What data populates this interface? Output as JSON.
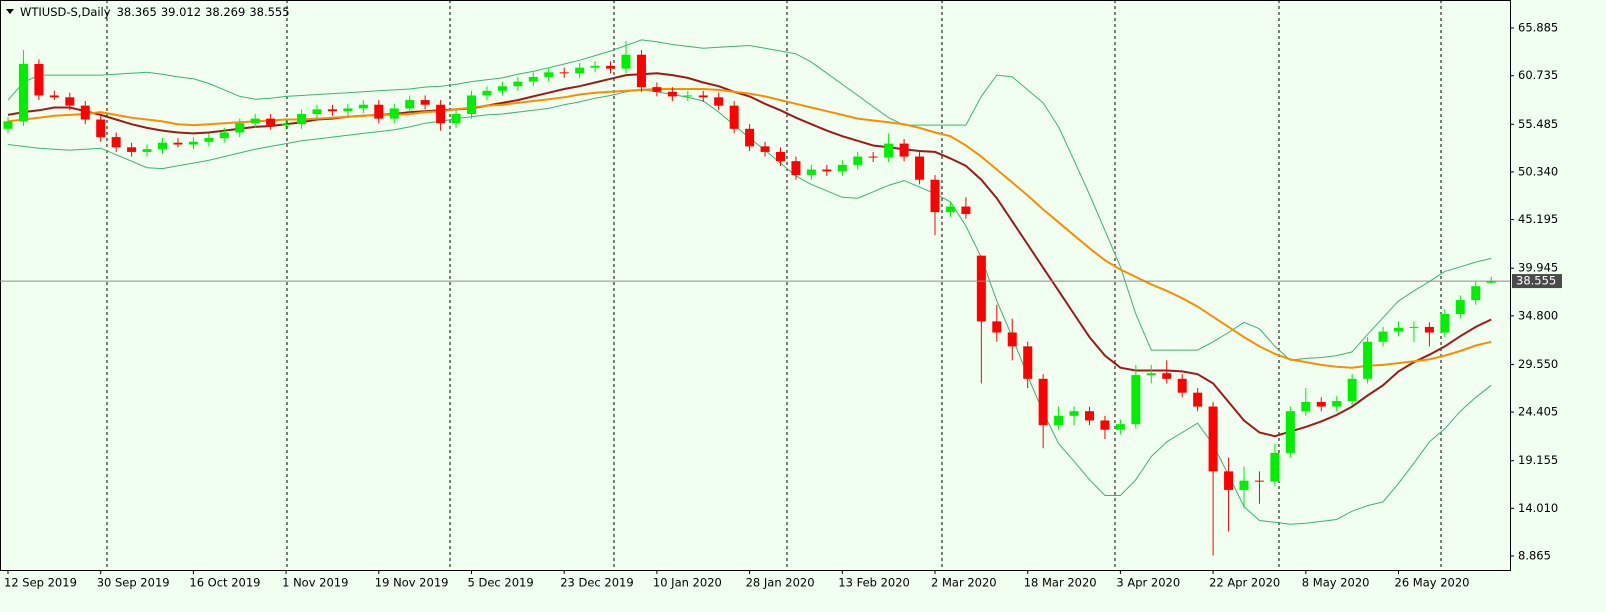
{
  "chart_data": {
    "type": "candlestick",
    "title": "WTIUSD-S,Daily",
    "header_values": [
      38.365,
      39.012,
      38.269,
      38.555
    ],
    "categories": [
      "12 Sep 2019",
      null,
      null,
      null,
      null,
      null,
      "30 Sep 2019",
      null,
      null,
      null,
      null,
      null,
      "16 Oct 2019",
      null,
      null,
      null,
      null,
      null,
      "1 Nov 2019",
      null,
      null,
      null,
      null,
      null,
      "19 Nov 2019",
      null,
      null,
      null,
      null,
      null,
      "5 Dec 2019",
      null,
      null,
      null,
      null,
      null,
      "23 Dec 2019",
      null,
      null,
      null,
      null,
      null,
      "10 Jan 2020",
      null,
      null,
      null,
      null,
      null,
      "28 Jan 2020",
      null,
      null,
      null,
      null,
      null,
      "13 Feb 2020",
      null,
      null,
      null,
      null,
      null,
      "2 Mar 2020",
      null,
      null,
      null,
      null,
      null,
      "18 Mar 2020",
      null,
      null,
      null,
      null,
      null,
      "3 Apr 2020",
      null,
      null,
      null,
      null,
      null,
      "22 Apr 2020",
      null,
      null,
      null,
      null,
      null,
      "8 May 2020",
      null,
      null,
      null,
      null,
      null,
      "26 May 2020",
      null,
      null,
      null,
      null,
      null,
      null
    ],
    "open": [
      55.0,
      55.8,
      62.0,
      58.6,
      58.4,
      57.5,
      56.0,
      54.1,
      53.0,
      52.5,
      52.8,
      53.5,
      53.3,
      53.6,
      54.0,
      54.6,
      55.6,
      56.1,
      55.4,
      55.5,
      56.6,
      57.1,
      56.9,
      57.2,
      57.6,
      56.1,
      57.2,
      58.1,
      57.6,
      55.6,
      56.6,
      58.6,
      59.1,
      59.6,
      60.1,
      60.6,
      61.1,
      61.0,
      61.6,
      61.8,
      61.5,
      63.0,
      59.5,
      59.0,
      58.5,
      58.6,
      58.4,
      57.5,
      55.0,
      53.1,
      52.5,
      51.5,
      50.0,
      50.6,
      50.4,
      51.1,
      52.0,
      51.9,
      53.4,
      52.0,
      49.5,
      46.0,
      46.6,
      41.3,
      34.2,
      33.0,
      31.5,
      28.0,
      23.0,
      24.0,
      24.5,
      23.5,
      22.5,
      23.1,
      28.4,
      28.6,
      28.0,
      26.5,
      25.0,
      18.0,
      16.0,
      17.0,
      16.9,
      20.0,
      24.5,
      25.5,
      25.0,
      25.6,
      28.0,
      32.0,
      33.1,
      33.5,
      33.6,
      33.0,
      35.0,
      36.5,
      38.365
    ],
    "high": [
      56.3,
      63.5,
      62.5,
      59.1,
      58.9,
      58.0,
      56.5,
      54.6,
      53.5,
      53.3,
      54.0,
      54.0,
      54.1,
      54.5,
      55.1,
      56.1,
      56.6,
      56.6,
      56.0,
      57.1,
      57.6,
      57.6,
      57.7,
      58.1,
      58.1,
      57.7,
      58.6,
      58.6,
      58.1,
      57.1,
      59.1,
      59.6,
      60.1,
      60.6,
      61.1,
      61.6,
      61.6,
      62.1,
      62.3,
      62.3,
      64.5,
      63.5,
      60.0,
      59.5,
      59.1,
      59.1,
      58.9,
      58.0,
      55.5,
      53.6,
      53.0,
      52.0,
      51.1,
      51.1,
      51.6,
      52.5,
      52.5,
      54.5,
      53.9,
      52.5,
      50.0,
      47.1,
      47.6,
      41.3,
      36.0,
      34.5,
      32.0,
      28.5,
      25.0,
      25.0,
      25.0,
      24.0,
      23.6,
      29.5,
      29.5,
      30.0,
      28.5,
      27.0,
      25.5,
      19.5,
      18.5,
      18.0,
      21.0,
      25.0,
      27.0,
      26.0,
      26.1,
      28.5,
      32.5,
      33.6,
      34.2,
      34.2,
      34.1,
      35.5,
      37.0,
      38.5,
      39.012
    ],
    "low": [
      54.5,
      55.3,
      58.1,
      58.1,
      57.0,
      55.5,
      53.6,
      52.5,
      52.0,
      52.0,
      52.3,
      53.0,
      52.8,
      53.1,
      53.5,
      54.1,
      55.1,
      54.9,
      54.9,
      55.0,
      56.1,
      56.4,
      56.4,
      56.7,
      55.6,
      55.6,
      56.7,
      57.1,
      54.8,
      55.1,
      56.1,
      58.1,
      58.6,
      59.1,
      59.6,
      60.1,
      60.5,
      60.5,
      61.1,
      61.0,
      61.0,
      59.0,
      58.5,
      58.0,
      58.0,
      57.9,
      57.0,
      54.5,
      52.6,
      52.0,
      51.0,
      49.5,
      49.5,
      49.9,
      49.9,
      50.6,
      51.4,
      51.4,
      51.5,
      49.0,
      43.5,
      45.5,
      45.3,
      27.5,
      32.0,
      30.0,
      27.0,
      20.5,
      22.5,
      23.0,
      23.0,
      21.5,
      22.0,
      22.6,
      27.5,
      27.5,
      26.0,
      24.5,
      8.9,
      11.5,
      14.0,
      14.5,
      16.4,
      19.5,
      24.0,
      24.5,
      24.5,
      25.1,
      27.5,
      31.5,
      32.6,
      32.0,
      31.5,
      32.5,
      34.5,
      36.0,
      38.269
    ],
    "close": [
      55.8,
      62.0,
      58.6,
      58.4,
      57.5,
      56.0,
      54.1,
      53.0,
      52.5,
      52.8,
      53.5,
      53.3,
      53.6,
      54.0,
      54.6,
      55.6,
      56.1,
      55.4,
      55.5,
      56.6,
      57.1,
      56.9,
      57.2,
      57.6,
      56.1,
      57.2,
      58.1,
      57.6,
      55.6,
      56.6,
      58.6,
      59.1,
      59.6,
      60.1,
      60.6,
      61.1,
      61.0,
      61.6,
      61.8,
      61.5,
      63.0,
      59.5,
      59.0,
      58.5,
      58.6,
      58.4,
      57.5,
      55.0,
      53.1,
      52.5,
      51.5,
      50.0,
      50.6,
      50.4,
      51.1,
      52.0,
      51.9,
      53.4,
      52.0,
      49.5,
      46.0,
      46.6,
      45.8,
      34.2,
      33.0,
      31.5,
      28.0,
      23.0,
      24.0,
      24.5,
      23.5,
      22.5,
      23.1,
      28.4,
      28.6,
      28.0,
      26.5,
      25.0,
      18.0,
      16.0,
      17.0,
      16.9,
      20.0,
      24.5,
      25.5,
      25.0,
      25.6,
      28.0,
      32.0,
      33.1,
      33.5,
      33.6,
      33.0,
      35.0,
      36.5,
      38.0,
      38.555
    ],
    "up_color": "#00ee00",
    "down_color": "#ff0000",
    "lines": [
      {
        "color": "#3cb371",
        "values": [
          58.1,
          60.0,
          60.8,
          60.8,
          60.8,
          60.8,
          60.8,
          60.9,
          61.0,
          61.1,
          60.9,
          60.6,
          60.4,
          59.9,
          59.2,
          58.5,
          58.2,
          58.3,
          58.5,
          58.6,
          58.7,
          58.8,
          58.9,
          59.0,
          59.1,
          59.2,
          59.3,
          59.5,
          59.6,
          59.8,
          60.1,
          60.3,
          60.5,
          60.9,
          61.2,
          61.6,
          62.0,
          62.4,
          62.9,
          63.4,
          64.0,
          64.6,
          64.4,
          64.1,
          63.9,
          63.7,
          63.8,
          63.9,
          64.0,
          63.7,
          63.4,
          63.1,
          62.2,
          61.0,
          59.8,
          58.6,
          57.4,
          56.2,
          55.4,
          55.4,
          55.4,
          55.4,
          55.4,
          58.5,
          60.8,
          60.6,
          59.2,
          57.8,
          55.2,
          51.6,
          47.9,
          44.0,
          40.1,
          35.0,
          31.1,
          31.1,
          31.1,
          31.1,
          32.0,
          33.0,
          34.1,
          33.4,
          31.5,
          30.0,
          30.2,
          30.3,
          30.5,
          30.9,
          32.8,
          34.6,
          36.4,
          37.5,
          38.5,
          39.6,
          40.1,
          40.6,
          41.0
        ]
      },
      {
        "color": "#3cb371",
        "values": [
          53.3,
          53.1,
          52.9,
          52.8,
          52.7,
          52.8,
          52.9,
          52.2,
          51.5,
          50.8,
          50.7,
          51.0,
          51.3,
          51.6,
          52.0,
          52.4,
          52.8,
          53.1,
          53.4,
          53.7,
          53.9,
          54.1,
          54.3,
          54.5,
          54.7,
          54.9,
          55.2,
          55.6,
          55.8,
          56.1,
          56.3,
          56.5,
          56.6,
          56.8,
          57.0,
          57.2,
          57.6,
          57.9,
          58.3,
          58.6,
          59.0,
          59.2,
          59.0,
          58.7,
          58.4,
          58.0,
          56.8,
          55.4,
          54.0,
          52.7,
          51.3,
          49.9,
          49.0,
          48.3,
          47.6,
          47.5,
          48.2,
          48.9,
          49.4,
          48.7,
          48.0,
          47.1,
          44.5,
          41.1,
          36.4,
          32.5,
          28.3,
          24.4,
          21.0,
          19.1,
          17.1,
          15.4,
          15.4,
          17.1,
          19.6,
          21.2,
          22.2,
          23.2,
          20.9,
          17.6,
          14.2,
          12.7,
          12.5,
          12.3,
          12.4,
          12.6,
          12.8,
          13.7,
          14.3,
          14.7,
          16.7,
          18.9,
          21.2,
          22.6,
          24.5,
          26.0,
          27.3
        ]
      },
      {
        "color": "#a01818",
        "values": [
          56.5,
          56.8,
          57.0,
          57.3,
          57.3,
          56.9,
          56.5,
          56.0,
          55.5,
          55.1,
          54.8,
          54.6,
          54.5,
          54.6,
          54.8,
          55.0,
          55.2,
          55.3,
          55.5,
          55.7,
          56.0,
          56.1,
          56.3,
          56.4,
          56.5,
          56.6,
          56.8,
          56.9,
          57.0,
          57.1,
          57.2,
          57.5,
          57.8,
          58.1,
          58.5,
          58.9,
          59.3,
          59.6,
          60.0,
          60.4,
          60.8,
          60.9,
          61.0,
          60.8,
          60.5,
          60.0,
          59.6,
          59.0,
          58.5,
          57.7,
          57.0,
          56.2,
          55.5,
          54.8,
          54.2,
          53.7,
          53.2,
          53.0,
          52.8,
          52.6,
          52.5,
          51.8,
          51.0,
          49.5,
          47.5,
          45.0,
          42.5,
          40.0,
          37.5,
          35.0,
          32.5,
          30.5,
          29.2,
          28.9,
          28.9,
          28.9,
          28.8,
          28.5,
          27.5,
          25.5,
          23.5,
          22.2,
          21.8,
          22.3,
          22.8,
          23.4,
          24.1,
          25.0,
          26.2,
          27.3,
          28.8,
          29.8,
          30.6,
          31.5,
          32.6,
          33.6,
          34.4
        ]
      },
      {
        "color": "#ff8c00",
        "values": [
          55.8,
          56.0,
          56.2,
          56.4,
          56.5,
          56.6,
          56.8,
          56.5,
          56.2,
          56.0,
          55.8,
          55.5,
          55.4,
          55.5,
          55.6,
          55.7,
          55.8,
          55.9,
          56.0,
          56.0,
          56.1,
          56.2,
          56.3,
          56.4,
          56.5,
          56.5,
          56.6,
          56.8,
          56.9,
          57.1,
          57.3,
          57.5,
          57.6,
          57.8,
          58.0,
          58.2,
          58.4,
          58.7,
          58.9,
          59.0,
          59.1,
          59.2,
          59.3,
          59.3,
          59.3,
          59.3,
          59.2,
          59.0,
          58.8,
          58.5,
          58.1,
          57.7,
          57.3,
          56.9,
          56.5,
          56.1,
          55.9,
          55.7,
          55.5,
          55.1,
          54.6,
          54.2,
          53.2,
          52.0,
          50.6,
          49.2,
          47.8,
          46.3,
          44.9,
          43.5,
          42.1,
          40.8,
          39.8,
          39.0,
          38.2,
          37.5,
          36.7,
          35.8,
          34.7,
          33.6,
          32.5,
          31.5,
          30.7,
          30.1,
          29.8,
          29.5,
          29.3,
          29.2,
          29.4,
          29.5,
          29.7,
          29.9,
          30.1,
          30.5,
          31.0,
          31.6,
          32.0
        ]
      }
    ],
    "last_price": 38.555,
    "ylim": [
      7.35,
      68.91
    ],
    "yticks": [
      65.885,
      60.735,
      55.485,
      {
        "value": 50.34,
        "label": "50.340"
      },
      45.195,
      39.945,
      {
        "value": 34.8,
        "label": "34.800"
      },
      {
        "value": 29.55,
        "label": "29.550"
      },
      24.405,
      19.155,
      {
        "value": 14.01,
        "label": "14.010"
      },
      8.865
    ]
  }
}
